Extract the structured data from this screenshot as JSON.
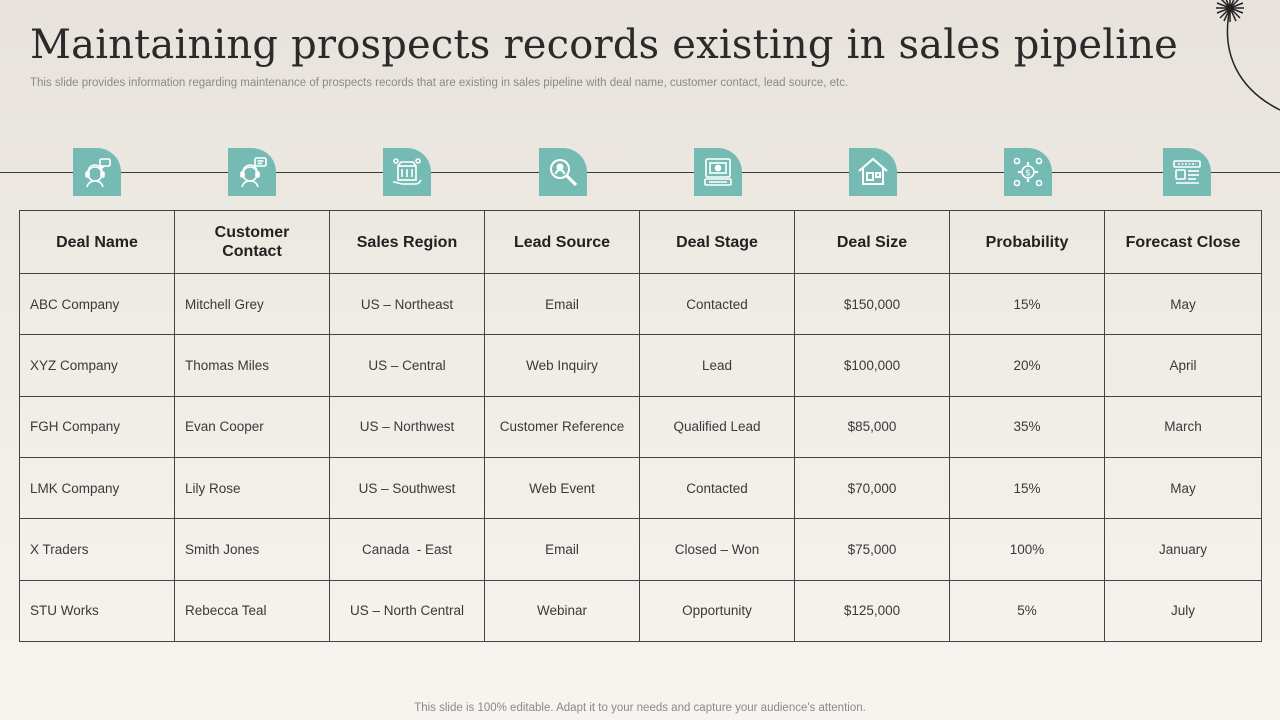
{
  "title": "Maintaining prospects records existing in sales pipeline",
  "subtitle": "This slide provides information regarding maintenance of prospects records that are existing in sales pipeline with deal name, customer contact, lead source, etc.",
  "footer": "This slide is 100% editable. Adapt it to your needs and capture your audience's attention.",
  "colors": {
    "accent": "#76bbb3",
    "border": "#444444",
    "title": "#2a2a2a"
  },
  "icons": [
    "deal-agent-icon",
    "contact-agent-icon",
    "region-shop-icon",
    "lead-search-icon",
    "deal-stage-board-icon",
    "deal-size-house-icon",
    "probability-gear-icon",
    "forecast-calendar-icon"
  ],
  "table": {
    "headers": [
      "Deal Name",
      "Customer Contact",
      "Sales Region",
      "Lead Source",
      "Deal Stage",
      "Deal Size",
      "Probability",
      "Forecast Close"
    ],
    "rows": [
      [
        "ABC Company",
        "Mitchell Grey",
        "US – Northeast",
        "Email",
        "Contacted",
        "$150,000",
        "15%",
        "May"
      ],
      [
        "XYZ Company",
        "Thomas Miles",
        "US – Central",
        "Web Inquiry",
        "Lead",
        "$100,000",
        "20%",
        "April"
      ],
      [
        "FGH Company",
        "Evan Cooper",
        "US – Northwest",
        "Customer Reference",
        "Qualified Lead",
        "$85,000",
        "35%",
        "March"
      ],
      [
        "LMK Company",
        "Lily Rose",
        "US – Southwest",
        "Web Event",
        "Contacted",
        "$70,000",
        "15%",
        "May"
      ],
      [
        "X Traders",
        "Smith Jones",
        "Canada  - East",
        "Email",
        "Closed – Won",
        "$75,000",
        "100%",
        "January"
      ],
      [
        "STU Works",
        "Rebecca Teal",
        "US – North Central",
        "Webinar",
        "Opportunity",
        "$125,000",
        "5%",
        "July"
      ]
    ]
  }
}
